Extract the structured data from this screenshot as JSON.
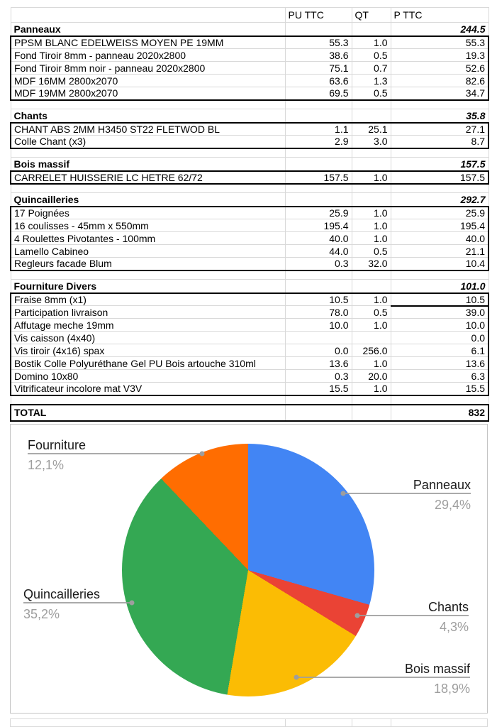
{
  "table": {
    "columns": [
      "",
      "PU TTC",
      "QT",
      "P TTC"
    ],
    "sections": [
      {
        "name": "Panneaux",
        "total": "244.5",
        "items": [
          {
            "label": "PPSM BLANC EDELWEISS MOYEN PE 19MM",
            "pu": "55.3",
            "qt": "1.0",
            "p": "55.3"
          },
          {
            "label": "Fond Tiroir 8mm - panneau 2020x2800",
            "pu": "38.6",
            "qt": "0.5",
            "p": "19.3"
          },
          {
            "label": "Fond Tiroir 8mm noir - panneau 2020x2800",
            "pu": "75.1",
            "qt": "0.7",
            "p": "52.6"
          },
          {
            "label": "MDF 16MM 2800x2070",
            "pu": "63.6",
            "qt": "1.3",
            "p": "82.6"
          },
          {
            "label": "MDF 19MM 2800x2070",
            "pu": "69.5",
            "qt": "0.5",
            "p": "34.7"
          }
        ]
      },
      {
        "name": "Chants",
        "total": "35.8",
        "items": [
          {
            "label": "CHANT ABS 2MM H3450 ST22 FLETWOD BL",
            "pu": "1.1",
            "qt": "25.1",
            "p": "27.1"
          },
          {
            "label": "Colle Chant (x3)",
            "pu": "2.9",
            "qt": "3.0",
            "p": "8.7"
          }
        ]
      },
      {
        "name": "Bois massif",
        "total": "157.5",
        "items": [
          {
            "label": "CARRELET HUISSERIE LC HETRE 62/72",
            "pu": "157.5",
            "qt": "1.0",
            "p": "157.5"
          }
        ]
      },
      {
        "name": "Quincailleries",
        "total": "292.7",
        "items": [
          {
            "label": "17 Poignées",
            "pu": "25.9",
            "qt": "1.0",
            "p": "25.9"
          },
          {
            "label": "16 coulisses - 45mm x 550mm",
            "pu": "195.4",
            "qt": "1.0",
            "p": "195.4"
          },
          {
            "label": "4 Roulettes Pivotantes - 100mm",
            "pu": "40.0",
            "qt": "1.0",
            "p": "40.0"
          },
          {
            "label": "Lamello Cabineo",
            "pu": "44.0",
            "qt": "0.5",
            "p": "21.1"
          },
          {
            "label": "Regleurs facade Blum",
            "pu": "0.3",
            "qt": "32.0",
            "p": "10.4"
          }
        ]
      },
      {
        "name": "Fourniture Divers",
        "total": "101.0",
        "items": [
          {
            "label": "Fraise 8mm (x1)",
            "pu": "10.5",
            "qt": "1.0",
            "p": "10.5",
            "p_border": true
          },
          {
            "label": "Participation livraison",
            "pu": "78.0",
            "qt": "0.5",
            "p": "39.0"
          },
          {
            "label": "Affutage meche 19mm",
            "pu": "10.0",
            "qt": "1.0",
            "p": "10.0"
          },
          {
            "label": "Vis caisson (4x40)",
            "pu": "",
            "qt": "",
            "p": "0.0"
          },
          {
            "label": "Vis tiroir (4x16) spax",
            "pu": "0.0",
            "qt": "256.0",
            "p": "6.1"
          },
          {
            "label": "Bostik Colle Polyuréthane Gel PU Bois artouche 310ml",
            "pu": "13.6",
            "qt": "1.0",
            "p": "13.6"
          },
          {
            "label": "Domino 10x80",
            "pu": "0.3",
            "qt": "20.0",
            "p": "6.3"
          },
          {
            "label": "Vitrificateur incolore mat V3V",
            "pu": "15.5",
            "qt": "1.0",
            "p": "15.5"
          }
        ]
      }
    ],
    "total_label": "TOTAL",
    "total_value": "832"
  },
  "chart_data": {
    "type": "pie",
    "title": "",
    "legend_position": "outside-labels",
    "start_angle_deg": 0,
    "direction": "clockwise",
    "slices": [
      {
        "label": "Panneaux",
        "value": 29.4,
        "pct_label": "29,4%",
        "color": "#4285F4"
      },
      {
        "label": "Chants",
        "value": 4.3,
        "pct_label": "4,3%",
        "color": "#EA4335"
      },
      {
        "label": "Bois massif",
        "value": 18.9,
        "pct_label": "18,9%",
        "color": "#FBBC04"
      },
      {
        "label": "Quincailleries",
        "value": 35.2,
        "pct_label": "35,2%",
        "color": "#34A853"
      },
      {
        "label": "Fourniture",
        "value": 12.1,
        "pct_label": "12,1%",
        "color": "#FF6D01"
      }
    ],
    "leader_line_color": "#9e9e9e",
    "pct_text_color": "#9e9e9e"
  }
}
